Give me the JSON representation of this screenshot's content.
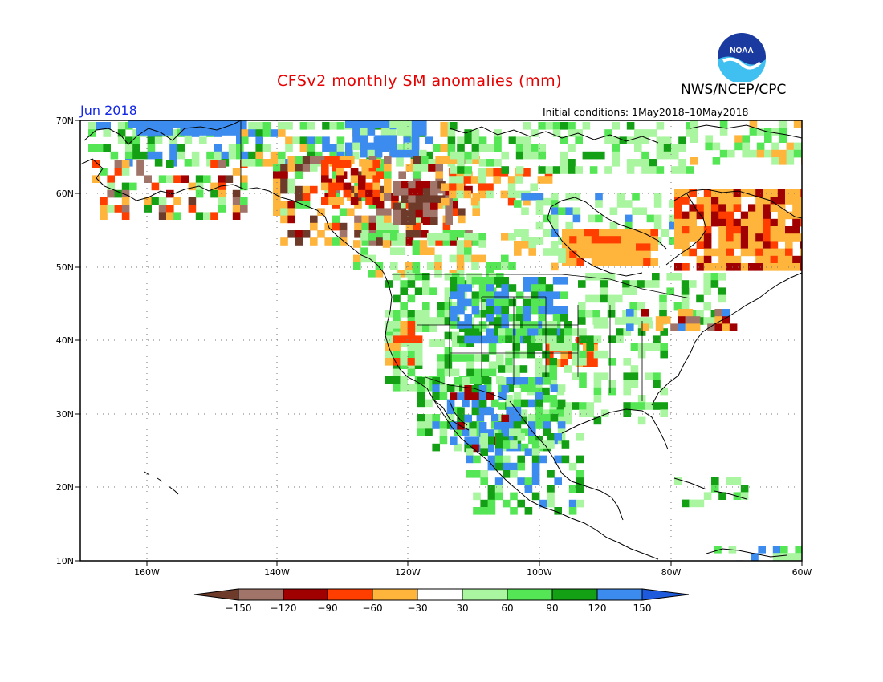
{
  "title": "CFSv2 monthly SM anomalies (mm)",
  "organization": "NWS/NCEP/CPC",
  "logo_text": "NOAA",
  "valid_month": "Jun 2018",
  "initial_conditions": "Initial conditions: 1May2018–10May2018",
  "lat_labels": [
    "70N",
    "60N",
    "50N",
    "40N",
    "30N",
    "20N",
    "10N"
  ],
  "lon_labels": [
    "160W",
    "140W",
    "120W",
    "100W",
    "80W",
    "60W"
  ],
  "colorbar": {
    "colors": [
      "#6e3b2b",
      "#a07468",
      "#a00000",
      "#ff3e00",
      "#ffb43c",
      "#ffffff",
      "#aaf5a0",
      "#55e655",
      "#14a014",
      "#3c8cf0",
      "#1e5adc"
    ],
    "labels": [
      "−150",
      "−120",
      "−90",
      "−60",
      "−30",
      "30",
      "60",
      "90",
      "120",
      "150"
    ]
  },
  "legend_colors": {
    "land_outline": "#000000",
    "grid": "#555555"
  }
}
